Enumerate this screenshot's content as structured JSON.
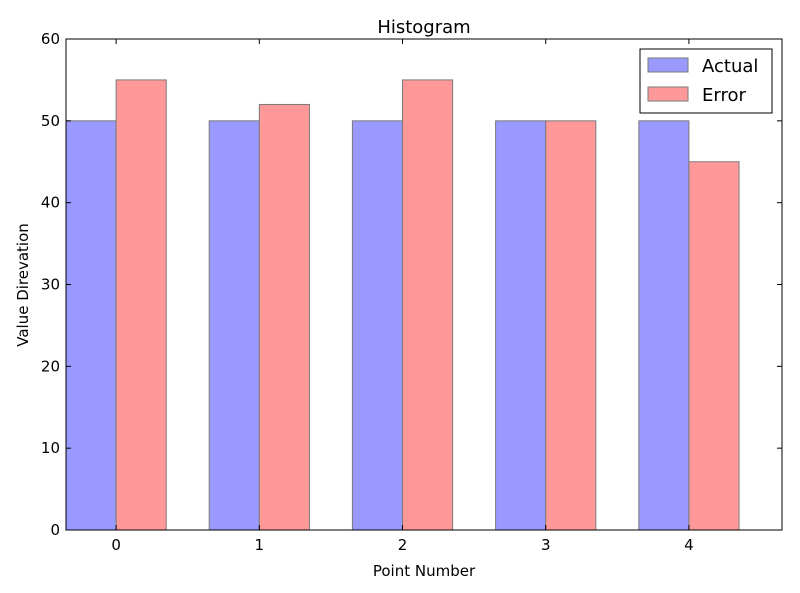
{
  "chart_data": {
    "type": "bar",
    "title": "Histogram",
    "xlabel": "Point Number",
    "ylabel": "Value Direvation",
    "categories": [
      "0",
      "1",
      "2",
      "3",
      "4"
    ],
    "series": [
      {
        "name": "Actual",
        "values": [
          50,
          50,
          50,
          50,
          50
        ],
        "color": "#9999ff"
      },
      {
        "name": "Error",
        "values": [
          55,
          52,
          55,
          50,
          45
        ],
        "color": "#ff9999"
      }
    ],
    "ylim": [
      0,
      60
    ],
    "xlim": [
      -0.35,
      4.65
    ],
    "yticks": [
      "0",
      "10",
      "20",
      "30",
      "40",
      "50",
      "60"
    ],
    "bar_width": 0.35,
    "legend_position": "top-right",
    "grid": false
  }
}
